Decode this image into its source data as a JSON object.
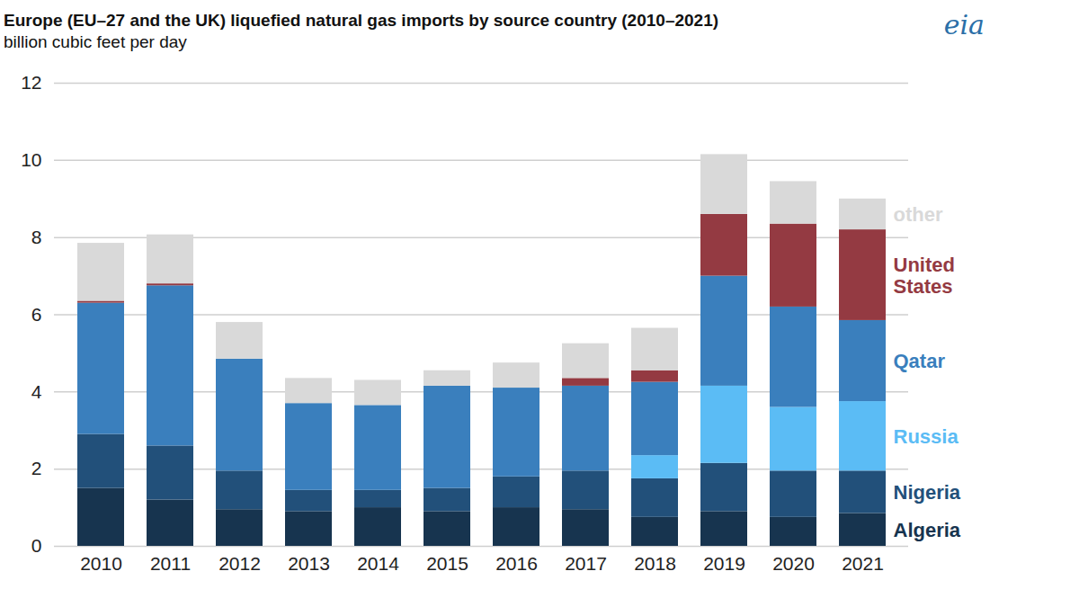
{
  "chart_data": {
    "type": "bar",
    "stacked": true,
    "title": "Europe (EU–27 and the UK) liquefied natural gas imports by source country (2010–2021)",
    "subtitle": "billion cubic feet per day",
    "annotations": [
      {
        "text": "eia"
      }
    ],
    "categories": [
      "2010",
      "2011",
      "2012",
      "2013",
      "2014",
      "2015",
      "2016",
      "2017",
      "2018",
      "2019",
      "2020",
      "2021"
    ],
    "series": [
      {
        "name": "Algeria",
        "color": "#17344f",
        "values": [
          1.5,
          1.2,
          0.95,
          0.9,
          1.0,
          0.9,
          1.0,
          0.95,
          0.75,
          0.9,
          0.75,
          0.85
        ]
      },
      {
        "name": "Nigeria",
        "color": "#22507a",
        "values": [
          1.4,
          1.4,
          1.0,
          0.55,
          0.45,
          0.6,
          0.8,
          1.0,
          1.0,
          1.25,
          1.2,
          1.1
        ]
      },
      {
        "name": "Russia",
        "color": "#5bbcf5",
        "values": [
          0,
          0,
          0,
          0,
          0,
          0,
          0,
          0,
          0.6,
          2.0,
          1.65,
          1.8
        ]
      },
      {
        "name": "Qatar",
        "color": "#3a7fbd",
        "values": [
          3.4,
          4.15,
          2.9,
          2.25,
          2.2,
          2.65,
          2.3,
          2.2,
          1.9,
          2.85,
          2.6,
          2.1
        ]
      },
      {
        "name": "United States",
        "color": "#943a42",
        "values": [
          0.05,
          0.05,
          0,
          0,
          0,
          0,
          0,
          0.2,
          0.3,
          1.6,
          2.15,
          2.35
        ]
      },
      {
        "name": "other",
        "color": "#d9d9d9",
        "values": [
          1.5,
          1.27,
          0.95,
          0.65,
          0.65,
          0.4,
          0.65,
          0.9,
          1.1,
          1.55,
          1.1,
          0.8
        ]
      }
    ],
    "ylim": [
      0,
      12
    ],
    "yticks": [
      0,
      2,
      4,
      6,
      8,
      10,
      12
    ],
    "grid": true
  }
}
